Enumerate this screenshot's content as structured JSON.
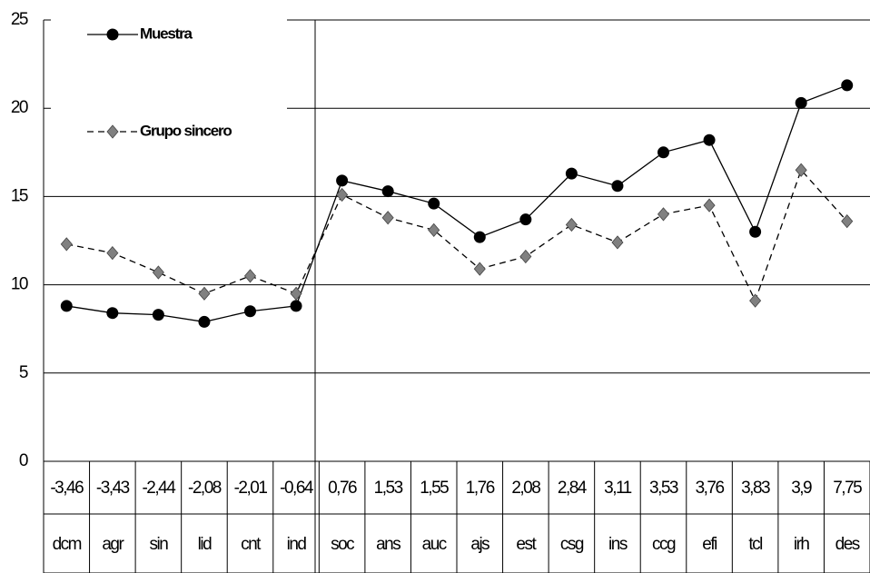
{
  "chart_data": {
    "type": "line",
    "categories": [
      "dcm",
      "agr",
      "sin",
      "lid",
      "cnt",
      "ind",
      "soc",
      "ans",
      "auc",
      "ajs",
      "est",
      "csg",
      "ins",
      "ccg",
      "efi",
      "tcl",
      "irh",
      "des"
    ],
    "category_values": [
      "-3,46",
      "-3,43",
      "-2,44",
      "-2,08",
      "-2,01",
      "-0,64",
      "0,76",
      "1,53",
      "1,55",
      "1,76",
      "2,08",
      "2,84",
      "3,11",
      "3,53",
      "3,76",
      "3,83",
      "3,9",
      "7,75"
    ],
    "series": [
      {
        "name": "Muestra",
        "color": "#000000",
        "values": [
          8.8,
          8.4,
          8.3,
          7.9,
          8.5,
          8.8,
          15.9,
          15.3,
          14.6,
          12.7,
          13.7,
          16.3,
          15.6,
          17.5,
          18.2,
          13.0,
          20.3,
          21.3
        ]
      },
      {
        "name": "Grupo sincero",
        "color": "#808080",
        "values": [
          12.3,
          11.8,
          10.7,
          9.5,
          10.5,
          9.5,
          15.1,
          13.8,
          13.1,
          10.9,
          11.6,
          13.4,
          12.4,
          14.0,
          14.5,
          9.1,
          16.5,
          13.6
        ]
      }
    ],
    "ylim": [
      0,
      25
    ],
    "yticks": [
      0,
      5,
      10,
      15,
      20,
      25
    ],
    "grid": true
  }
}
